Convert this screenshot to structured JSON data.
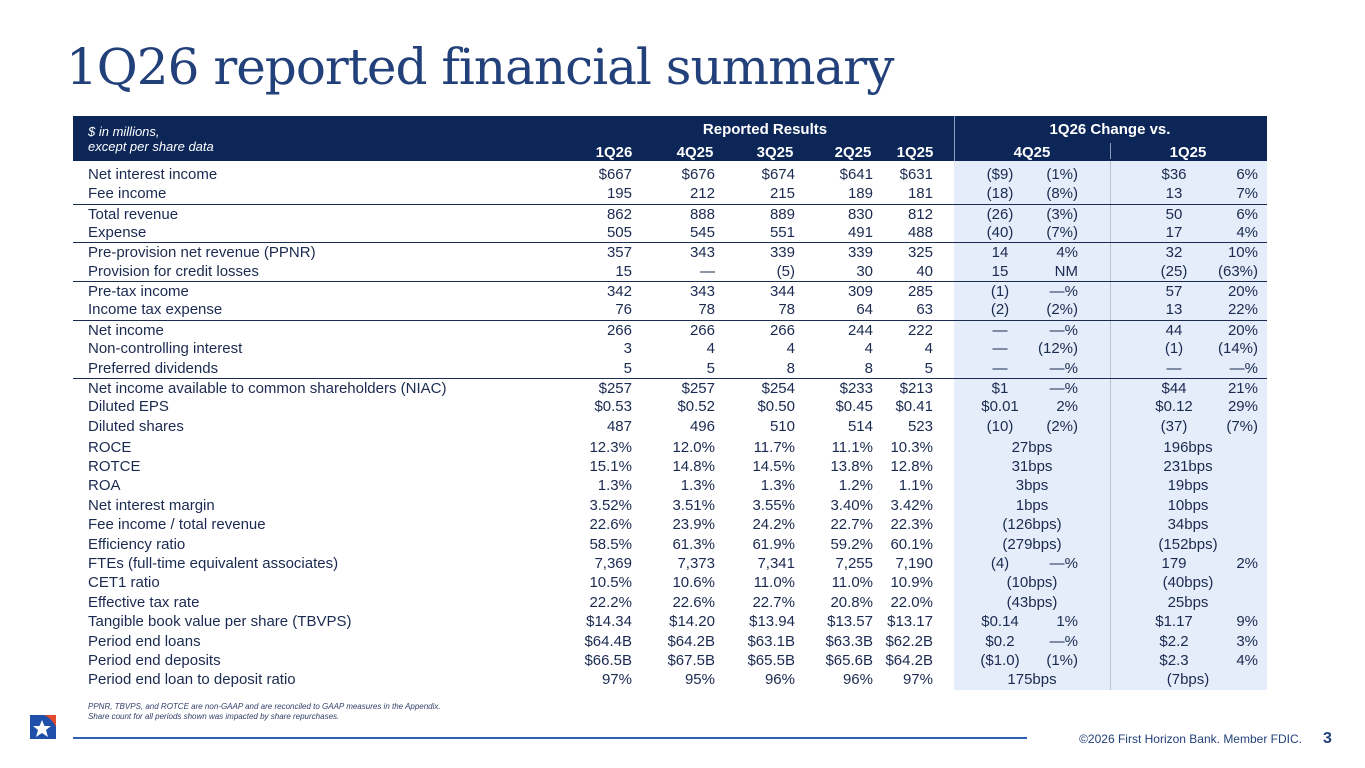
{
  "title": "1Q26 reported financial summary",
  "header": {
    "unit_line1": "$ in millions,",
    "unit_line2": "except per share data",
    "group_reported": "Reported Results",
    "group_change": "1Q26 Change vs.",
    "periods": [
      "1Q26",
      "4Q25",
      "3Q25",
      "2Q25",
      "1Q25"
    ],
    "change_periods": [
      "4Q25",
      "1Q25"
    ]
  },
  "rows": [
    {
      "label": "Net interest income",
      "values": [
        "$667",
        "$676",
        "$674",
        "$641",
        "$631"
      ],
      "chg4": [
        "($9)",
        "(1%)"
      ],
      "chg1": [
        "$36",
        "6%"
      ]
    },
    {
      "label": "Fee income",
      "values": [
        "195",
        "212",
        "215",
        "189",
        "181"
      ],
      "chg4": [
        "(18)",
        "(8%)"
      ],
      "chg1": [
        "13",
        "7%"
      ]
    },
    {
      "label": "Total revenue",
      "values": [
        "862",
        "888",
        "889",
        "830",
        "812"
      ],
      "chg4": [
        "(26)",
        "(3%)"
      ],
      "chg1": [
        "50",
        "6%"
      ]
    },
    {
      "label": "Expense",
      "values": [
        "505",
        "545",
        "551",
        "491",
        "488"
      ],
      "chg4": [
        "(40)",
        "(7%)"
      ],
      "chg1": [
        "17",
        "4%"
      ]
    },
    {
      "label": "Pre-provision net revenue (PPNR)",
      "values": [
        "357",
        "343",
        "339",
        "339",
        "325"
      ],
      "chg4": [
        "14",
        "4%"
      ],
      "chg1": [
        "32",
        "10%"
      ]
    },
    {
      "label": "Provision for credit losses",
      "values": [
        "15",
        "—",
        "(5)",
        "30",
        "40"
      ],
      "chg4": [
        "15",
        "NM"
      ],
      "chg1": [
        "(25)",
        "(63%)"
      ]
    },
    {
      "label": "Pre-tax income",
      "values": [
        "342",
        "343",
        "344",
        "309",
        "285"
      ],
      "chg4": [
        "(1)",
        "—%"
      ],
      "chg1": [
        "57",
        "20%"
      ]
    },
    {
      "label": "Income tax expense",
      "values": [
        "76",
        "78",
        "78",
        "64",
        "63"
      ],
      "chg4": [
        "(2)",
        "(2%)"
      ],
      "chg1": [
        "13",
        "22%"
      ]
    },
    {
      "label": "Net income",
      "values": [
        "266",
        "266",
        "266",
        "244",
        "222"
      ],
      "chg4": [
        "—",
        "—%"
      ],
      "chg1": [
        "44",
        "20%"
      ]
    },
    {
      "label": "Non-controlling interest",
      "values": [
        "3",
        "4",
        "4",
        "4",
        "4"
      ],
      "chg4": [
        "—",
        "(12%)"
      ],
      "chg1": [
        "(1)",
        "(14%)"
      ]
    },
    {
      "label": "Preferred dividends",
      "values": [
        "5",
        "5",
        "8",
        "8",
        "5"
      ],
      "chg4": [
        "—",
        "—%"
      ],
      "chg1": [
        "—",
        "—%"
      ]
    },
    {
      "label": "Net income available to common shareholders (NIAC)",
      "values": [
        "$257",
        "$257",
        "$254",
        "$233",
        "$213"
      ],
      "chg4": [
        "$1",
        "—%"
      ],
      "chg1": [
        "$44",
        "21%"
      ]
    },
    {
      "label": "Diluted EPS",
      "values": [
        "$0.53",
        "$0.52",
        "$0.50",
        "$0.45",
        "$0.41"
      ],
      "chg4": [
        "$0.01",
        "2%"
      ],
      "chg1": [
        "$0.12",
        "29%"
      ]
    },
    {
      "label": "Diluted shares",
      "values": [
        "487",
        "496",
        "510",
        "514",
        "523"
      ],
      "chg4": [
        "(10)",
        "(2%)"
      ],
      "chg1": [
        "(37)",
        "(7%)"
      ]
    }
  ],
  "metrics": [
    {
      "label": "ROCE",
      "values": [
        "12.3%",
        "12.0%",
        "11.7%",
        "11.1%",
        "10.3%"
      ],
      "chg4": [
        "27bps"
      ],
      "chg1": [
        "196bps"
      ]
    },
    {
      "label": "ROTCE",
      "values": [
        "15.1%",
        "14.8%",
        "14.5%",
        "13.8%",
        "12.8%"
      ],
      "chg4": [
        "31bps"
      ],
      "chg1": [
        "231bps"
      ]
    },
    {
      "label": "ROA",
      "values": [
        "1.3%",
        "1.3%",
        "1.3%",
        "1.2%",
        "1.1%"
      ],
      "chg4": [
        "3bps"
      ],
      "chg1": [
        "19bps"
      ]
    },
    {
      "label": "Net interest margin",
      "values": [
        "3.52%",
        "3.51%",
        "3.55%",
        "3.40%",
        "3.42%"
      ],
      "chg4": [
        "1bps"
      ],
      "chg1": [
        "10bps"
      ]
    },
    {
      "label": "Fee income / total revenue",
      "values": [
        "22.6%",
        "23.9%",
        "24.2%",
        "22.7%",
        "22.3%"
      ],
      "chg4": [
        "(126bps)"
      ],
      "chg1": [
        "34bps"
      ]
    },
    {
      "label": "Efficiency ratio",
      "values": [
        "58.5%",
        "61.3%",
        "61.9%",
        "59.2%",
        "60.1%"
      ],
      "chg4": [
        "(279bps)"
      ],
      "chg1": [
        "(152bps)"
      ]
    },
    {
      "label": "FTEs (full-time equivalent associates)",
      "values": [
        "7,369",
        "7,373",
        "7,341",
        "7,255",
        "7,190"
      ],
      "chg4": [
        "(4)",
        "—%"
      ],
      "chg1": [
        "179",
        "2%"
      ]
    },
    {
      "label": "CET1 ratio",
      "values": [
        "10.5%",
        "10.6%",
        "11.0%",
        "11.0%",
        "10.9%"
      ],
      "chg4": [
        "(10bps)"
      ],
      "chg1": [
        "(40bps)"
      ]
    },
    {
      "label": "Effective tax rate",
      "values": [
        "22.2%",
        "22.6%",
        "22.7%",
        "20.8%",
        "22.0%"
      ],
      "chg4": [
        "(43bps)"
      ],
      "chg1": [
        "25bps"
      ]
    },
    {
      "label": "Tangible book value per share (TBVPS)",
      "values": [
        "$14.34",
        "$14.20",
        "$13.94",
        "$13.57",
        "$13.17"
      ],
      "chg4": [
        "$0.14",
        "1%"
      ],
      "chg1": [
        "$1.17",
        "9%"
      ]
    },
    {
      "label": "Period end loans",
      "values": [
        "$64.4B",
        "$64.2B",
        "$63.1B",
        "$63.3B",
        "$62.2B"
      ],
      "chg4": [
        "$0.2",
        "—%"
      ],
      "chg1": [
        "$2.2",
        "3%"
      ]
    },
    {
      "label": "Period end deposits",
      "values": [
        "$66.5B",
        "$67.5B",
        "$65.5B",
        "$65.6B",
        "$64.2B"
      ],
      "chg4": [
        "($1.0)",
        "(1%)"
      ],
      "chg1": [
        "$2.3",
        "4%"
      ]
    },
    {
      "label": "Period end loan to deposit ratio",
      "values": [
        "97%",
        "95%",
        "96%",
        "96%",
        "97%"
      ],
      "chg4": [
        "175bps"
      ],
      "chg1": [
        "(7bps)"
      ]
    }
  ],
  "footnotes": [
    "PPNR, TBVPS, and ROTCE are non-GAAP and are reconciled to GAAP measures in the Appendix.",
    "Share count for all periods shown was impacted by share repurchases."
  ],
  "footer": {
    "copyright": "©2026 First Horizon Bank. Member FDIC.",
    "page": "3"
  },
  "logo": {
    "text": "First Horizon",
    "colors": {
      "blue": "#1f4fa8",
      "red": "#e04a2f"
    }
  },
  "colors": {
    "header": "#0c2658",
    "band": "#e4edf9",
    "title": "#22407a"
  }
}
